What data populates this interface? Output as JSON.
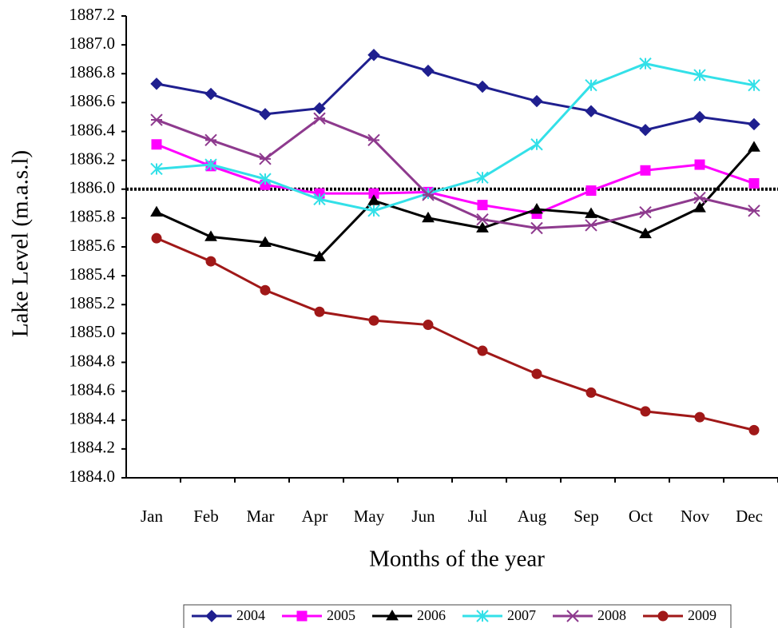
{
  "chart_data": {
    "type": "line",
    "x_label": "Months of the year",
    "y_label": "Lake Level (m.a.s.l)",
    "categories": [
      "Jan",
      "Feb",
      "Mar",
      "Apr",
      "May",
      "Jun",
      "Jul",
      "Aug",
      "Sep",
      "Oct",
      "Nov",
      "Dec"
    ],
    "ylim": [
      1884.0,
      1887.2
    ],
    "yticks": [
      {
        "value": 1884.0,
        "label": "1884.0"
      },
      {
        "value": 1884.2,
        "label": "1884.2"
      },
      {
        "value": 1884.4,
        "label": "1884.4"
      },
      {
        "value": 1884.6,
        "label": "1884.6"
      },
      {
        "value": 1884.8,
        "label": "1884.8"
      },
      {
        "value": 1885.0,
        "label": "1885.0"
      },
      {
        "value": 1885.2,
        "label": "1885.2"
      },
      {
        "value": 1885.4,
        "label": "1885.4"
      },
      {
        "value": 1885.6,
        "label": "1885.6"
      },
      {
        "value": 1885.8,
        "label": "1885.8"
      },
      {
        "value": 1886.0,
        "label": "1886.0"
      },
      {
        "value": 1886.2,
        "label": "1886.2"
      },
      {
        "value": 1886.4,
        "label": "1886.4"
      },
      {
        "value": 1886.6,
        "label": "1886.6"
      },
      {
        "value": 1886.8,
        "label": "1886.8"
      },
      {
        "value": 1887.0,
        "label": "1887.0"
      },
      {
        "value": 1887.2,
        "label": "1887.2"
      }
    ],
    "reference_line": 1886.0,
    "legend": "bottom",
    "series": [
      {
        "name": "2004",
        "color": "#1f1f8f",
        "marker": "diamond",
        "values": [
          1886.73,
          1886.66,
          1886.52,
          1886.56,
          1886.93,
          1886.82,
          1886.71,
          1886.61,
          1886.54,
          1886.41,
          1886.5,
          1886.45
        ]
      },
      {
        "name": "2005",
        "color": "#ff00ff",
        "marker": "square",
        "values": [
          1886.31,
          1886.16,
          1886.03,
          1885.97,
          1885.97,
          1885.98,
          1885.89,
          1885.83,
          1885.99,
          1886.13,
          1886.17,
          1886.04
        ]
      },
      {
        "name": "2006",
        "color": "#000000",
        "marker": "triangle",
        "values": [
          1885.84,
          1885.67,
          1885.63,
          1885.53,
          1885.92,
          1885.8,
          1885.73,
          1885.86,
          1885.83,
          1885.69,
          1885.87,
          1886.29
        ]
      },
      {
        "name": "2007",
        "color": "#33e0e8",
        "marker": "asterisk",
        "values": [
          1886.14,
          1886.17,
          1886.07,
          1885.93,
          1885.85,
          1885.97,
          1886.08,
          1886.31,
          1886.72,
          1886.87,
          1886.79,
          1886.72
        ]
      },
      {
        "name": "2008",
        "color": "#8e3a8e",
        "marker": "star",
        "values": [
          1886.48,
          1886.34,
          1886.21,
          1886.49,
          1886.34,
          1885.96,
          1885.79,
          1885.73,
          1885.75,
          1885.84,
          1885.94,
          1885.85
        ]
      },
      {
        "name": "2009",
        "color": "#a01818",
        "marker": "circle",
        "values": [
          1885.66,
          1885.5,
          1885.3,
          1885.15,
          1885.09,
          1885.06,
          1884.88,
          1884.72,
          1884.59,
          1884.46,
          1884.42,
          1884.33
        ]
      }
    ]
  }
}
